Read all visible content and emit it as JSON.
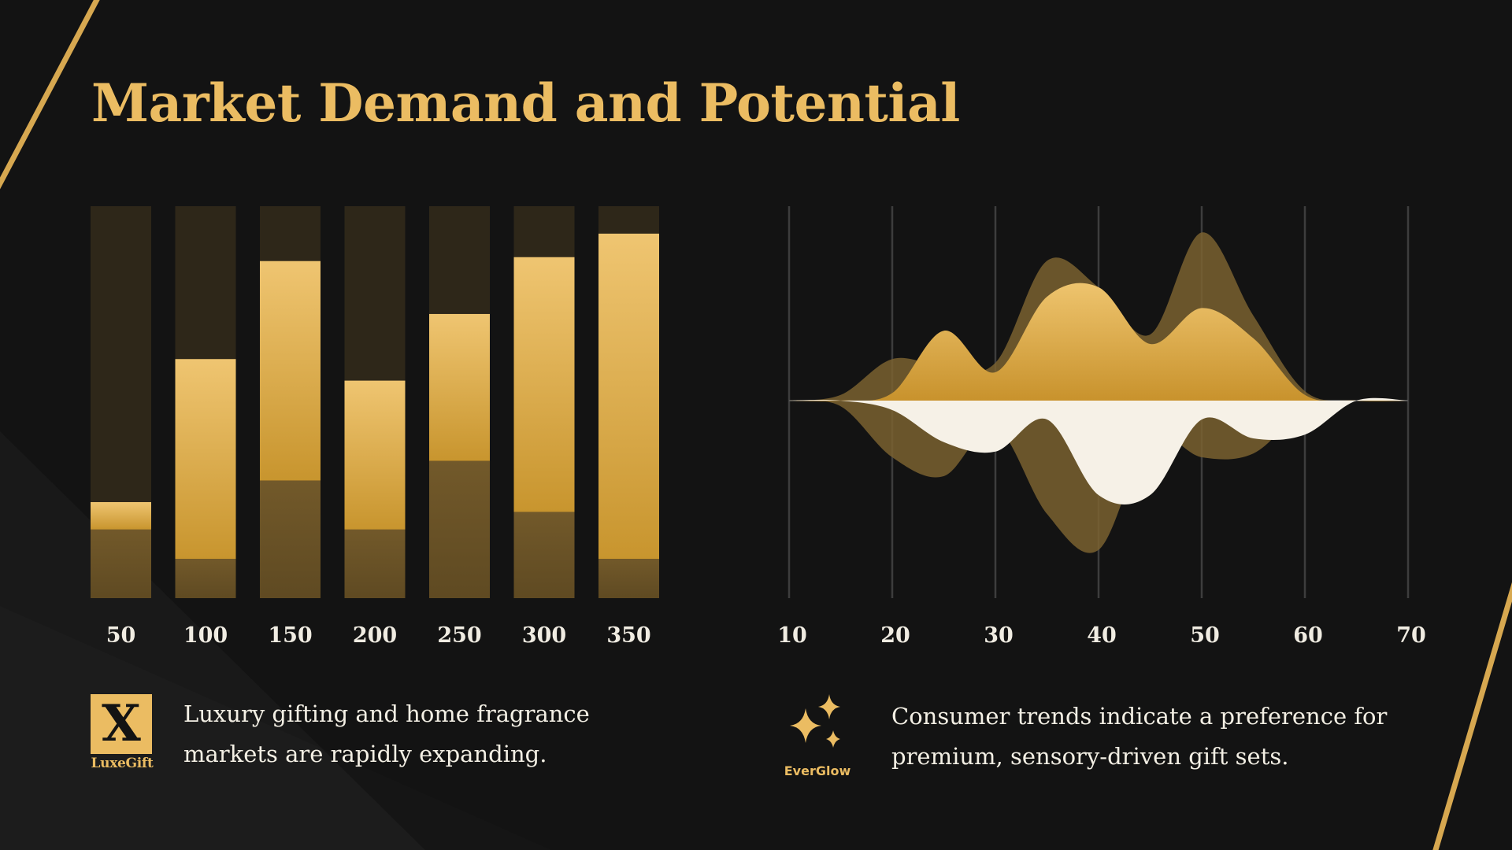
{
  "slide": {
    "title": "Market Demand and Potential",
    "captions": {
      "left": "Luxury gifting and home fragrance markets are rapidly expanding.",
      "right": "Consumer trends indicate a preference for premium, sensory-driven gift sets."
    },
    "logos": {
      "left": {
        "letter": "X",
        "name": "LuxeGift"
      },
      "right": {
        "name": "EverGlow"
      }
    }
  },
  "colors": {
    "background": "#131313",
    "gold": "#ebbc62",
    "gold_deep": "#c8952e",
    "bronze": "#6e5628",
    "track": "#2e2719",
    "cream": "#f6f1e7"
  },
  "chart_data": [
    {
      "type": "bar",
      "categories": [
        "50",
        "100",
        "150",
        "200",
        "250",
        "300",
        "350"
      ],
      "ylim": [
        0,
        100
      ],
      "series": [
        {
          "values": [
            17.5,
            10,
            30,
            17.5,
            35,
            22,
            10
          ]
        },
        {
          "values": [
            7,
            51,
            56,
            38,
            37.5,
            65,
            83
          ]
        }
      ],
      "stacked": true,
      "background_track": true,
      "title": "",
      "xlabel": "",
      "ylabel": ""
    },
    {
      "type": "area",
      "subtype": "mirrored-streamgraph",
      "x_ticks": [
        "10",
        "20",
        "30",
        "40",
        "50",
        "60",
        "70"
      ],
      "xlim": [
        10,
        70
      ],
      "ylim": [
        -1,
        1
      ],
      "grid": true,
      "series": [
        {
          "role": "upper-back",
          "x": [
            10,
            15,
            20,
            25,
            30,
            35,
            40,
            45,
            50,
            55,
            60,
            65,
            70
          ],
          "y": [
            0,
            0.03,
            0.22,
            0.18,
            0.2,
            0.74,
            0.6,
            0.35,
            0.89,
            0.45,
            0.05,
            0,
            0
          ]
        },
        {
          "role": "upper-front",
          "x": [
            10,
            15,
            20,
            25,
            30,
            35,
            40,
            45,
            50,
            55,
            60,
            65,
            70
          ],
          "y": [
            0,
            0,
            0.04,
            0.37,
            0.15,
            0.55,
            0.6,
            0.3,
            0.49,
            0.33,
            0.03,
            0,
            0
          ]
        },
        {
          "role": "lower-back",
          "x": [
            10,
            15,
            20,
            25,
            30,
            35,
            40,
            45,
            50,
            55,
            60,
            65,
            70
          ],
          "y": [
            0,
            -0.03,
            -0.3,
            -0.4,
            -0.14,
            -0.6,
            -0.79,
            -0.2,
            -0.3,
            -0.28,
            -0.05,
            0,
            0
          ]
        },
        {
          "role": "lower-front",
          "x": [
            10,
            15,
            20,
            25,
            30,
            35,
            40,
            45,
            50,
            55,
            60,
            65,
            70
          ],
          "y": [
            0,
            0,
            -0.05,
            -0.22,
            -0.27,
            -0.1,
            -0.5,
            -0.5,
            -0.1,
            -0.2,
            -0.18,
            0,
            0
          ]
        }
      ],
      "title": "",
      "xlabel": "",
      "ylabel": ""
    }
  ]
}
